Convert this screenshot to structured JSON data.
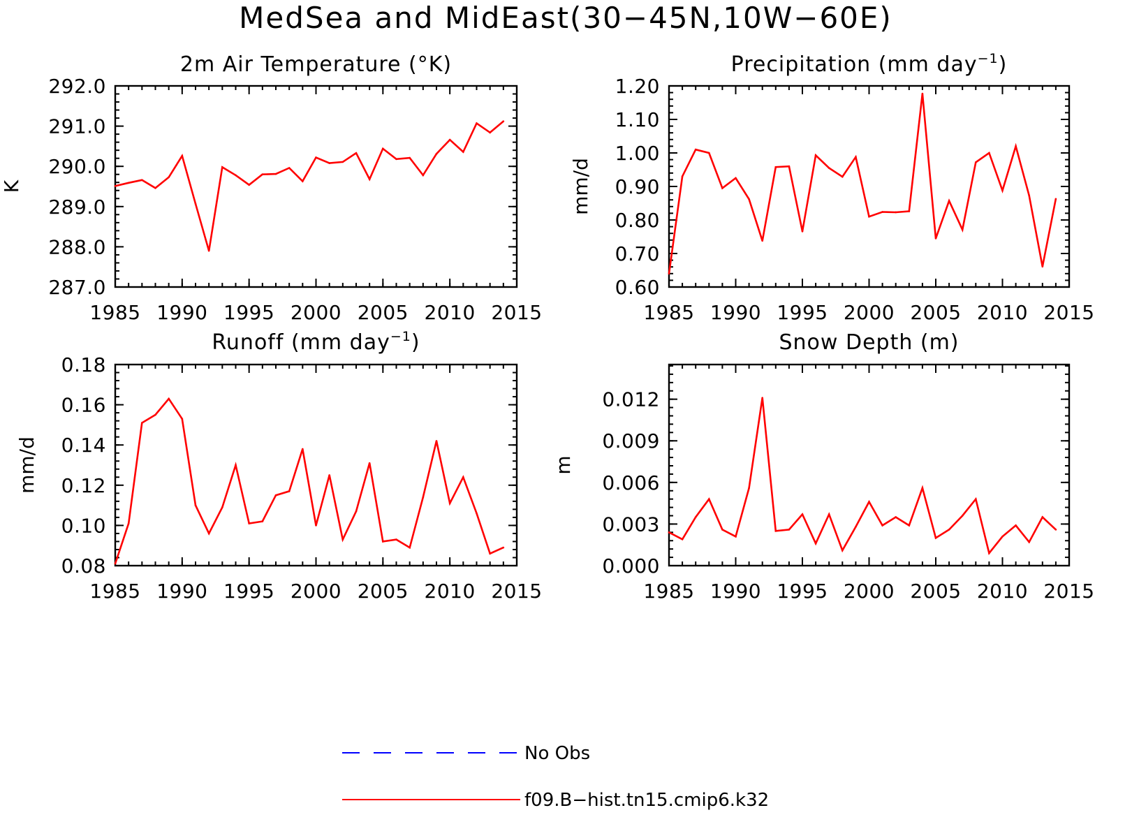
{
  "figure": {
    "title": "MedSea and MidEast(30−45N,10W−60E)"
  },
  "legend": {
    "items": [
      {
        "label": "No Obs",
        "color": "#0000ff",
        "style": "dashed"
      },
      {
        "label": "f09.B−hist.tn15.cmip6.k32",
        "color": "#ff0000",
        "style": "solid"
      }
    ]
  },
  "chart_data": [
    {
      "type": "line",
      "title": "2m Air Temperature (°K)",
      "title_main": "2m Air Temperature (°K)",
      "title_sup": "",
      "title_tail": "",
      "xlabel": "",
      "ylabel": "K",
      "xlim": [
        1985,
        2015
      ],
      "ylim": [
        287.0,
        292.0
      ],
      "xticks": [
        1985,
        1990,
        1995,
        2000,
        2005,
        2010,
        2015
      ],
      "yticks": [
        "287.0",
        "288.0",
        "289.0",
        "290.0",
        "291.0",
        "292.0"
      ],
      "y_minor_step": 0.2,
      "x_minor_step": 1,
      "grid": false,
      "series": [
        {
          "color": "#ff0000",
          "x": [
            1985,
            1986,
            1987,
            1988,
            1989,
            1990,
            1991,
            1992,
            1993,
            1994,
            1995,
            1996,
            1997,
            1998,
            1999,
            2000,
            2001,
            2002,
            2003,
            2004,
            2005,
            2006,
            2007,
            2008,
            2009,
            2010,
            2011,
            2012,
            2013,
            2014
          ],
          "y": [
            289.51,
            289.59,
            289.66,
            289.46,
            289.73,
            290.26,
            289.07,
            287.9,
            289.98,
            289.78,
            289.54,
            289.8,
            289.81,
            289.96,
            289.63,
            290.22,
            290.08,
            290.11,
            290.33,
            289.68,
            290.44,
            290.18,
            290.21,
            289.78,
            290.31,
            290.66,
            290.36,
            291.07,
            290.84,
            291.12
          ]
        }
      ]
    },
    {
      "type": "line",
      "title": "Precipitation (mm day⁻¹)",
      "title_main": "Precipitation (mm day",
      "title_sup": "−1",
      "title_tail": ")",
      "xlabel": "",
      "ylabel": "mm/d",
      "xlim": [
        1985,
        2015
      ],
      "ylim": [
        0.6,
        1.2
      ],
      "xticks": [
        1985,
        1990,
        1995,
        2000,
        2005,
        2010,
        2015
      ],
      "yticks": [
        "0.60",
        "0.70",
        "0.80",
        "0.90",
        "1.00",
        "1.10",
        "1.20"
      ],
      "y_minor_step": 0.02,
      "x_minor_step": 1,
      "grid": false,
      "series": [
        {
          "color": "#ff0000",
          "x": [
            1985,
            1986,
            1987,
            1988,
            1989,
            1990,
            1991,
            1992,
            1993,
            1994,
            1995,
            1996,
            1997,
            1998,
            1999,
            2000,
            2001,
            2002,
            2003,
            2004,
            2005,
            2006,
            2007,
            2008,
            2009,
            2010,
            2011,
            2012,
            2013,
            2014
          ],
          "y": [
            0.64,
            0.93,
            1.01,
            1.0,
            0.895,
            0.925,
            0.862,
            0.738,
            0.958,
            0.96,
            0.766,
            0.993,
            0.955,
            0.929,
            0.988,
            0.81,
            0.824,
            0.823,
            0.826,
            1.177,
            0.745,
            0.857,
            0.771,
            0.972,
            1.0,
            0.888,
            1.02,
            0.873,
            0.661,
            0.863
          ]
        }
      ]
    },
    {
      "type": "line",
      "title": "Runoff (mm day⁻¹)",
      "title_main": "Runoff (mm day",
      "title_sup": "−1",
      "title_tail": ")",
      "xlabel": "",
      "ylabel": "mm/d",
      "xlim": [
        1985,
        2015
      ],
      "ylim": [
        0.08,
        0.18
      ],
      "xticks": [
        1985,
        1990,
        1995,
        2000,
        2005,
        2010,
        2015
      ],
      "yticks": [
        "0.08",
        "0.10",
        "0.12",
        "0.14",
        "0.16",
        "0.18"
      ],
      "y_minor_step": 0.004,
      "x_minor_step": 1,
      "grid": false,
      "series": [
        {
          "color": "#ff0000",
          "x": [
            1985,
            1986,
            1987,
            1988,
            1989,
            1990,
            1991,
            1992,
            1993,
            1994,
            1995,
            1996,
            1997,
            1998,
            1999,
            2000,
            2001,
            2002,
            2003,
            2004,
            2005,
            2006,
            2007,
            2008,
            2009,
            2010,
            2011,
            2012,
            2013,
            2014
          ],
          "y": [
            0.081,
            0.101,
            0.151,
            0.155,
            0.163,
            0.153,
            0.11,
            0.096,
            0.109,
            0.13,
            0.101,
            0.102,
            0.115,
            0.117,
            0.138,
            0.1,
            0.125,
            0.093,
            0.107,
            0.131,
            0.092,
            0.093,
            0.089,
            0.114,
            0.142,
            0.111,
            0.124,
            0.106,
            0.086,
            0.089
          ]
        }
      ]
    },
    {
      "type": "line",
      "title": "Snow Depth (m)",
      "title_main": "Snow Depth (m)",
      "title_sup": "",
      "title_tail": "",
      "xlabel": "",
      "ylabel": "m",
      "xlim": [
        1985,
        2015
      ],
      "ylim": [
        0.0,
        0.0145
      ],
      "xticks": [
        1985,
        1990,
        1995,
        2000,
        2005,
        2010,
        2015
      ],
      "yticks": [
        "0.000",
        "0.003",
        "0.006",
        "0.009",
        "0.012"
      ],
      "y_minor_step": 0.0006,
      "x_minor_step": 1,
      "grid": false,
      "series": [
        {
          "color": "#ff0000",
          "x": [
            1985,
            1986,
            1987,
            1988,
            1989,
            1990,
            1991,
            1992,
            1993,
            1994,
            1995,
            1996,
            1997,
            1998,
            1999,
            2000,
            2001,
            2002,
            2003,
            2004,
            2005,
            2006,
            2007,
            2008,
            2009,
            2010,
            2011,
            2012,
            2013,
            2014
          ],
          "y": [
            0.0024,
            0.0019,
            0.0035,
            0.0048,
            0.0026,
            0.0021,
            0.0056,
            0.0121,
            0.0025,
            0.0026,
            0.0037,
            0.0016,
            0.0037,
            0.0011,
            0.0028,
            0.0046,
            0.0029,
            0.0035,
            0.0029,
            0.0056,
            0.002,
            0.0026,
            0.0036,
            0.0048,
            0.0009,
            0.0021,
            0.0029,
            0.0017,
            0.0035,
            0.0026
          ]
        }
      ]
    }
  ]
}
